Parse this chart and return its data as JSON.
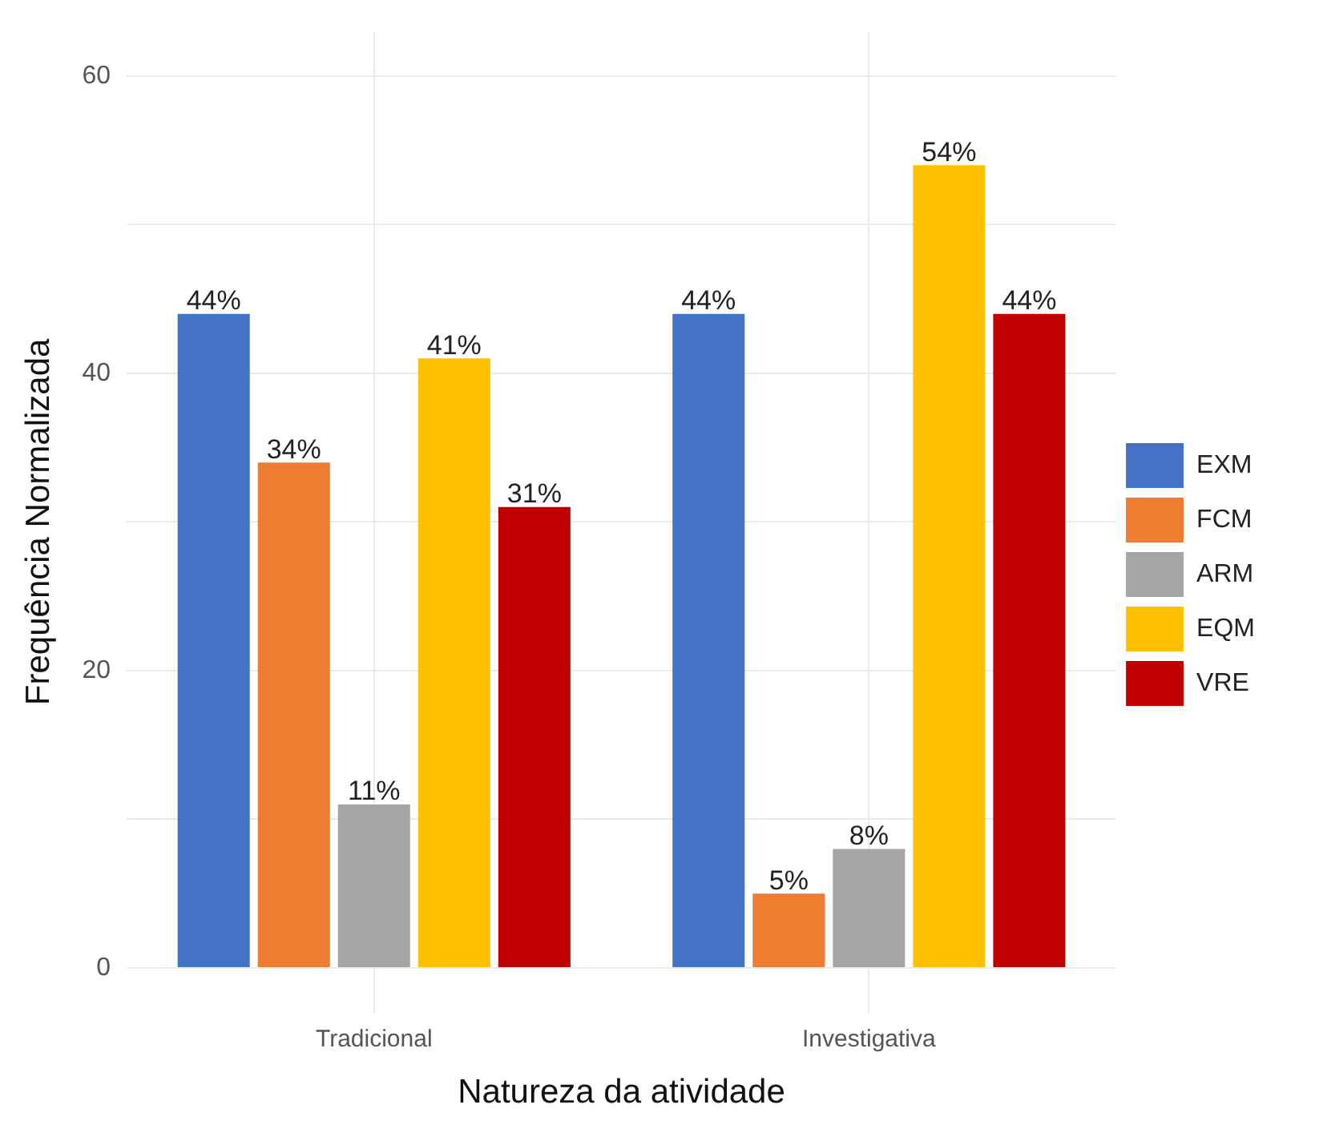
{
  "chart_data": {
    "type": "bar",
    "xlabel": "Natureza da atividade",
    "ylabel": "Frequência Normalizada",
    "categories": [
      "Tradicional",
      "Investigativa"
    ],
    "series": [
      {
        "name": "EXM",
        "color": "#4472c4",
        "values": [
          44,
          44
        ],
        "value_labels": [
          "44%",
          "44%"
        ]
      },
      {
        "name": "FCM",
        "color": "#ed7d31",
        "values": [
          34,
          5
        ],
        "value_labels": [
          "34%",
          "5%"
        ]
      },
      {
        "name": "ARM",
        "color": "#a5a5a5",
        "values": [
          11,
          8
        ],
        "value_labels": [
          "11%",
          "8%"
        ]
      },
      {
        "name": "EQM",
        "color": "#ffc000",
        "values": [
          41,
          54
        ],
        "value_labels": [
          "41%",
          "54%"
        ]
      },
      {
        "name": "VRE",
        "color": "#c00000",
        "values": [
          31,
          44
        ],
        "value_labels": [
          "31%",
          "44%"
        ]
      }
    ],
    "ylim": [
      -3,
      63
    ],
    "yticks": [
      0,
      {
        "value": 10,
        "label": null
      },
      20,
      {
        "value": 30,
        "label": null
      },
      40,
      {
        "value": 50,
        "label": null
      },
      60
    ],
    "grid": true,
    "legend": "right"
  }
}
